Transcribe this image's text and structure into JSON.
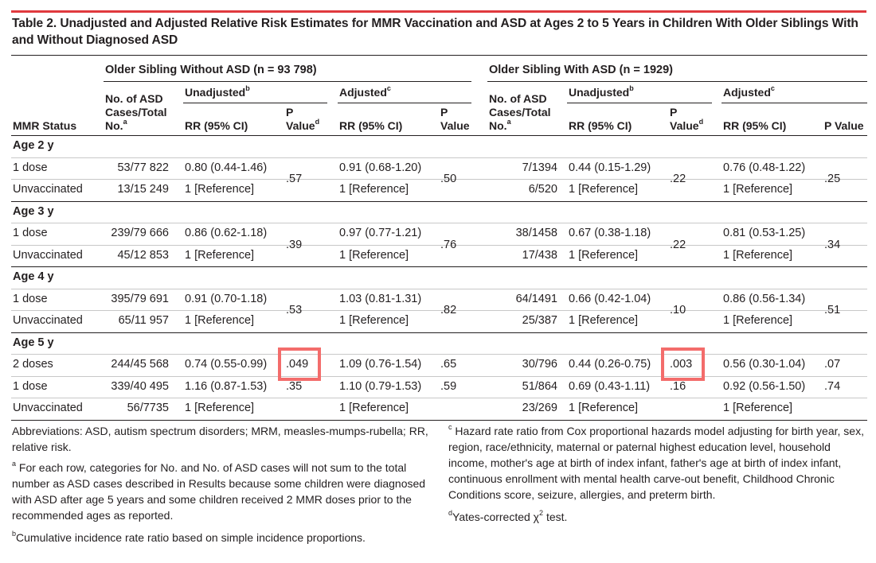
{
  "title": "Table 2. Unadjusted and Adjusted Relative Risk Estimates for MMR Vaccination and ASD at Ages 2 to 5 Years in Children With Older Siblings With and Without Diagnosed ASD",
  "colors": {
    "accent_rule": "#e03a3e",
    "highlight": "#f36c6b",
    "section_bg": "#e6e7e8"
  },
  "groups": {
    "without": "Older Sibling Without ASD (n = 93 798)",
    "with": "Older Sibling With ASD (n = 1929)"
  },
  "headers": {
    "mmr_status": "MMR Status",
    "cases_l1": "No. of ASD",
    "cases_l2": "Cases/Total",
    "cases_l3": "No.",
    "unadjusted": "Unadjusted",
    "adjusted": "Adjusted",
    "rr": "RR (95% CI)",
    "p": "P",
    "value": "Value",
    "p_value": "P Value",
    "sup_a": "a",
    "sup_b": "b",
    "sup_c": "c",
    "sup_d": "d"
  },
  "sections": [
    {
      "label": "Age 2 y",
      "rows": [
        {
          "status": "1 dose",
          "w_cases": "53/77 822",
          "w_rr_u": "0.80 (0.44-1.46)",
          "w_rr_a": "0.91 (0.68-1.20)",
          "s_cases": "7/1394",
          "s_rr_u": "0.44 (0.15-1.29)",
          "s_rr_a": "0.76 (0.48-1.22)"
        },
        {
          "status": "Unvaccinated",
          "w_cases": "13/15 249",
          "w_rr_u": "1 [Reference]",
          "w_rr_a": "1 [Reference]",
          "s_cases": "6/520",
          "s_rr_u": "1 [Reference]",
          "s_rr_a": "1 [Reference]"
        }
      ],
      "p": {
        "w_u": ".57",
        "w_a": ".50",
        "s_u": ".22",
        "s_a": ".25"
      }
    },
    {
      "label": "Age 3 y",
      "rows": [
        {
          "status": "1 dose",
          "w_cases": "239/79 666",
          "w_rr_u": "0.86 (0.62-1.18)",
          "w_rr_a": "0.97 (0.77-1.21)",
          "s_cases": "38/1458",
          "s_rr_u": "0.67 (0.38-1.18)",
          "s_rr_a": "0.81 (0.53-1.25)"
        },
        {
          "status": "Unvaccinated",
          "w_cases": "45/12 853",
          "w_rr_u": "1 [Reference]",
          "w_rr_a": "1 [Reference]",
          "s_cases": "17/438",
          "s_rr_u": "1 [Reference]",
          "s_rr_a": "1 [Reference]"
        }
      ],
      "p": {
        "w_u": ".39",
        "w_a": ".76",
        "s_u": ".22",
        "s_a": ".34"
      }
    },
    {
      "label": "Age 4 y",
      "rows": [
        {
          "status": "1 dose",
          "w_cases": "395/79 691",
          "w_rr_u": "0.91 (0.70-1.18)",
          "w_rr_a": "1.03 (0.81-1.31)",
          "s_cases": "64/1491",
          "s_rr_u": "0.66 (0.42-1.04)",
          "s_rr_a": "0.86 (0.56-1.34)"
        },
        {
          "status": "Unvaccinated",
          "w_cases": "65/11 957",
          "w_rr_u": "1 [Reference]",
          "w_rr_a": "1 [Reference]",
          "s_cases": "25/387",
          "s_rr_u": "1 [Reference]",
          "s_rr_a": "1 [Reference]"
        }
      ],
      "p": {
        "w_u": ".53",
        "w_a": ".82",
        "s_u": ".10",
        "s_a": ".51"
      }
    },
    {
      "label": "Age 5 y",
      "rows": [
        {
          "status": "2 doses",
          "w_cases": "244/45 568",
          "w_rr_u": "0.74 (0.55-0.99)",
          "w_p_u": ".049",
          "w_rr_a": "1.09 (0.76-1.54)",
          "w_p_a": ".65",
          "s_cases": "30/796",
          "s_rr_u": "0.44 (0.26-0.75)",
          "s_p_u": ".003",
          "s_rr_a": "0.56 (0.30-1.04)",
          "s_p_a": ".07"
        },
        {
          "status": "1 dose",
          "w_cases": "339/40 495",
          "w_rr_u": "1.16 (0.87-1.53)",
          "w_p_u": ".35",
          "w_rr_a": "1.10 (0.79-1.53)",
          "w_p_a": ".59",
          "s_cases": "51/864",
          "s_rr_u": "0.69 (0.43-1.11)",
          "s_p_u": ".16",
          "s_rr_a": "0.92 (0.56-1.50)",
          "s_p_a": ".74"
        },
        {
          "status": "Unvaccinated",
          "w_cases": "56/7735",
          "w_rr_u": "1 [Reference]",
          "w_rr_a": "1 [Reference]",
          "s_cases": "23/269",
          "s_rr_u": "1 [Reference]",
          "s_rr_a": "1 [Reference]"
        }
      ]
    }
  ],
  "footnotes": {
    "abbrev": "Abbreviations: ASD, autism spectrum disorders; MRM, measles-mumps-rubella; RR, relative risk.",
    "a_mark": "a",
    "a": "For each row, categories for No. and No. of ASD cases will not sum to the total number as ASD cases described in Results because some children were diagnosed with ASD after age 5 years and some children received 2 MMR doses prior to the recommended ages as reported.",
    "b_mark": "b",
    "b": "Cumulative incidence rate ratio based on simple incidence proportions.",
    "c_mark": "c",
    "c": "Hazard rate ratio from Cox proportional hazards model adjusting for birth year, sex, region, race/ethnicity, maternal or paternal highest education level, household income, mother's age at birth of index infant, father's age at birth of index infant, continuous enrollment with mental health carve-out benefit, Childhood Chronic Conditions score, seizure, allergies, and preterm birth.",
    "d_mark": "d",
    "d_pre": "Yates-corrected χ",
    "d_sup": "2",
    "d_post": " test."
  }
}
